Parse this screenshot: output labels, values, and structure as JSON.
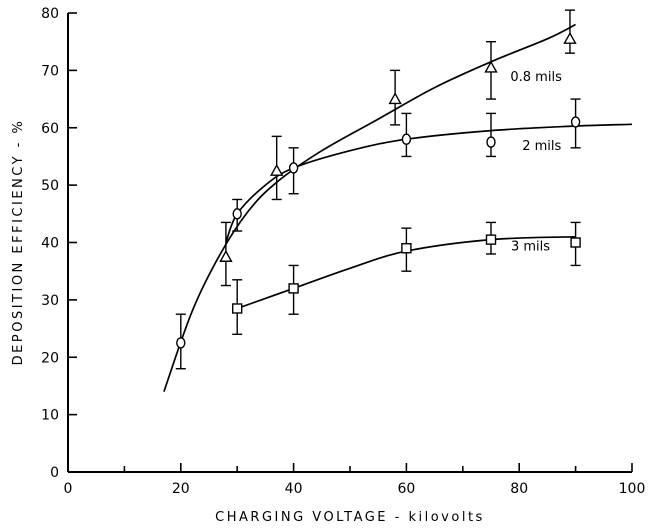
{
  "chart_data": {
    "type": "scatter",
    "xlabel": "CHARGING VOLTAGE - kilovolts",
    "ylabel": "DEPOSITION EFFICIENCY - %",
    "xlim": [
      0,
      100
    ],
    "ylim": [
      0,
      80
    ],
    "x_ticks": [
      "0",
      "20",
      "40",
      "60",
      "80",
      "100"
    ],
    "y_ticks": [
      "0",
      "10",
      "20",
      "30",
      "40",
      "50",
      "60",
      "70",
      "80"
    ],
    "grid": false,
    "legend": "none (series labelled directly on curves)",
    "series": [
      {
        "name": "0.8 mils",
        "marker": "triangle",
        "points": [
          {
            "x": 28,
            "y": 37.5,
            "lo": 32.5,
            "hi": 43.5
          },
          {
            "x": 37,
            "y": 52.5,
            "lo": 47.5,
            "hi": 58.5
          },
          {
            "x": 58,
            "y": 65,
            "lo": 60.5,
            "hi": 70
          },
          {
            "x": 75,
            "y": 70.5,
            "lo": 65,
            "hi": 75
          },
          {
            "x": 89,
            "y": 75.5,
            "lo": 73,
            "hi": 80.5
          }
        ],
        "fit_curve": [
          [
            17,
            14
          ],
          [
            22,
            28
          ],
          [
            27,
            38
          ],
          [
            32,
            45.5
          ],
          [
            37,
            50.5
          ],
          [
            45,
            56
          ],
          [
            55,
            61.5
          ],
          [
            65,
            67
          ],
          [
            75,
            71.5
          ],
          [
            85,
            75.5
          ],
          [
            90,
            78
          ]
        ]
      },
      {
        "name": "2 mils",
        "marker": "circle",
        "points": [
          {
            "x": 20,
            "y": 22.5,
            "lo": 18,
            "hi": 27.5
          },
          {
            "x": 30,
            "y": 45,
            "lo": 42,
            "hi": 47.5
          },
          {
            "x": 40,
            "y": 53,
            "lo": 48.5,
            "hi": 56.5
          },
          {
            "x": 60,
            "y": 58,
            "lo": 55,
            "hi": 62.5
          },
          {
            "x": 75,
            "y": 57.5,
            "lo": 55,
            "hi": 62.5
          },
          {
            "x": 90,
            "y": 61,
            "lo": 56.5,
            "hi": 65
          }
        ],
        "fit_curve": [
          [
            28,
            40
          ],
          [
            30,
            45
          ],
          [
            35,
            50
          ],
          [
            40,
            53
          ],
          [
            50,
            56
          ],
          [
            60,
            58
          ],
          [
            75,
            59.5
          ],
          [
            90,
            60.3
          ],
          [
            100,
            60.6
          ]
        ]
      },
      {
        "name": "3 mils",
        "marker": "square",
        "points": [
          {
            "x": 30,
            "y": 28.5,
            "lo": 24,
            "hi": 33.5
          },
          {
            "x": 40,
            "y": 32,
            "lo": 27.5,
            "hi": 36
          },
          {
            "x": 60,
            "y": 39,
            "lo": 35,
            "hi": 42.5
          },
          {
            "x": 75,
            "y": 40.5,
            "lo": 38,
            "hi": 43.5
          },
          {
            "x": 90,
            "y": 40,
            "lo": 36,
            "hi": 43.5
          }
        ],
        "fit_curve": [
          [
            30,
            28.5
          ],
          [
            40,
            32
          ],
          [
            50,
            35.5
          ],
          [
            60,
            38.5
          ],
          [
            75,
            40.5
          ],
          [
            90,
            41
          ]
        ]
      }
    ]
  }
}
